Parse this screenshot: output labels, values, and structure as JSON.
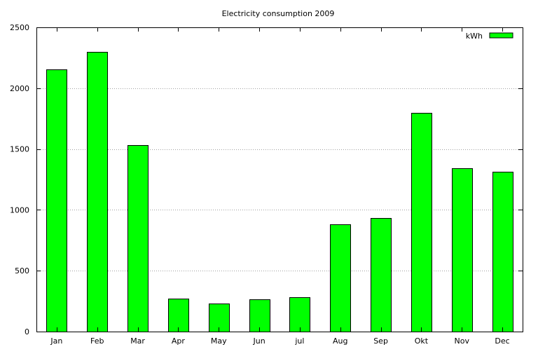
{
  "chart_data": {
    "type": "bar",
    "title": "Electricity consumption 2009",
    "xlabel": "",
    "ylabel": "",
    "categories": [
      "Jan",
      "Feb",
      "Mar",
      "Apr",
      "May",
      "Jun",
      "jul",
      "Aug",
      "Sep",
      "Okt",
      "Nov",
      "Dec"
    ],
    "series": [
      {
        "name": "kWh",
        "color": "#00ff00",
        "values": [
          2155,
          2300,
          1535,
          270,
          230,
          265,
          285,
          880,
          935,
          1800,
          1340,
          1315
        ]
      }
    ],
    "ylim": [
      0,
      2500
    ],
    "yticks": [
      0,
      500,
      1000,
      1500,
      2000,
      2500
    ],
    "grid": "horizontal dotted",
    "legend": "top-right"
  }
}
